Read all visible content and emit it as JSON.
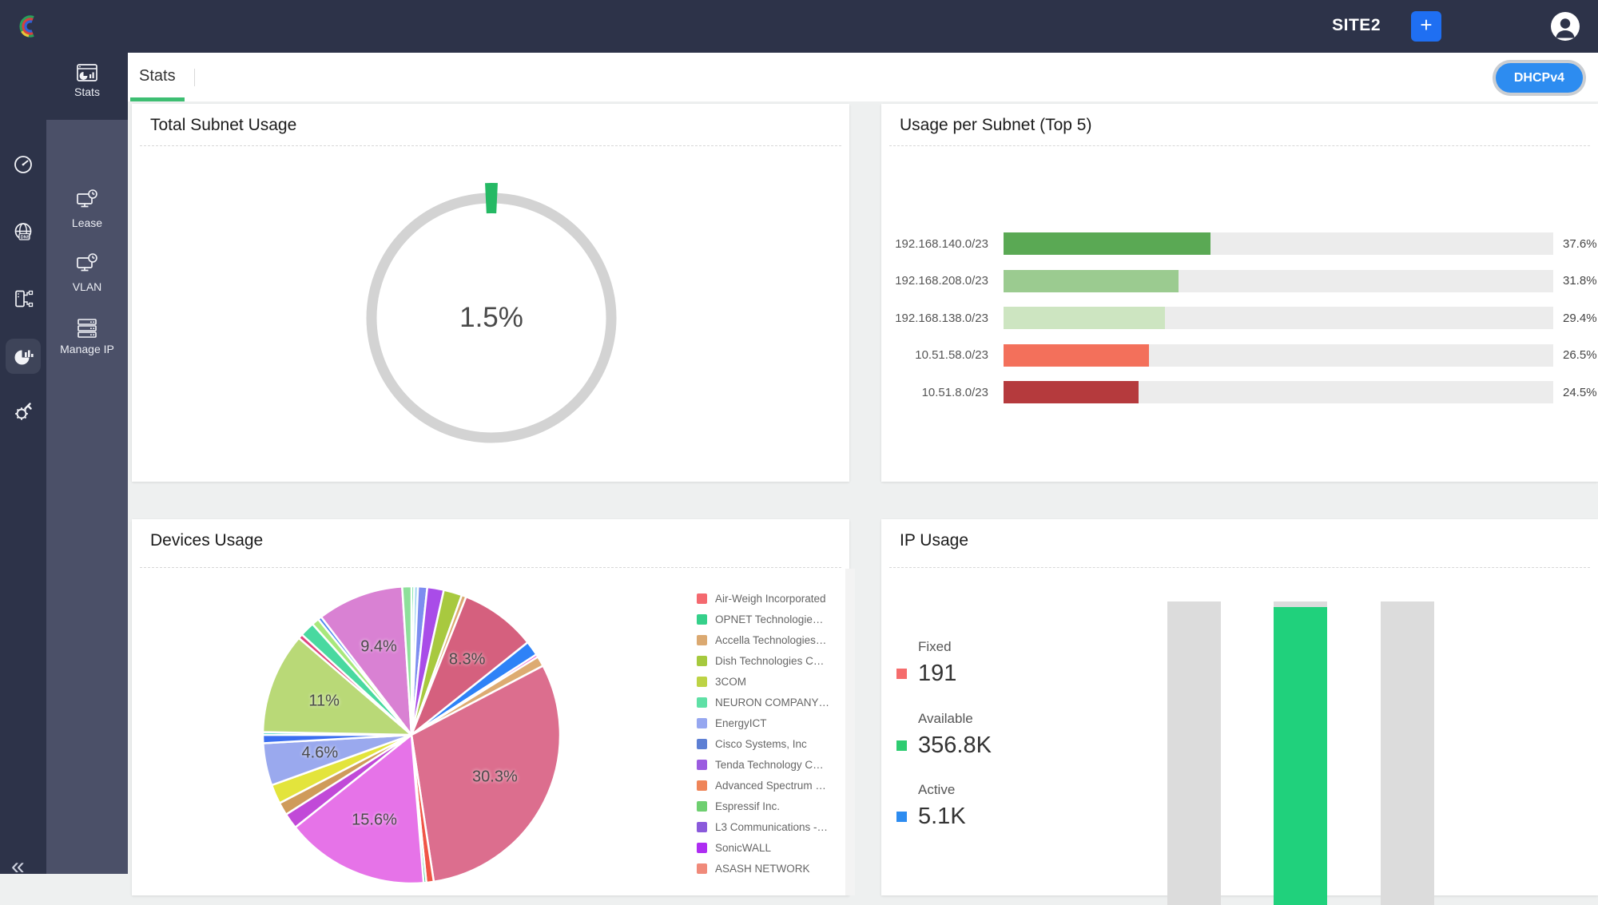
{
  "navbar": {
    "site": "SITE2",
    "add": "+"
  },
  "rail": {
    "collapse": "«"
  },
  "sidebar": {
    "active_index": 0,
    "items": [
      {
        "label": "Stats"
      },
      {
        "label": "Lease"
      },
      {
        "label": "VLAN"
      },
      {
        "label": "Manage IP"
      }
    ]
  },
  "toolbar": {
    "active_tab": "Stats",
    "badge": "DHCPv4"
  },
  "cards": {
    "total_subnet_usage": {
      "title": "Total Subnet Usage",
      "center_label": "1.5%"
    },
    "usage_per_subnet": {
      "title": "Usage per Subnet (Top 5)"
    },
    "devices_usage": {
      "title": "Devices Usage"
    },
    "ip_usage": {
      "title": "IP Usage"
    }
  },
  "chart_data": [
    {
      "type": "donut-gauge",
      "title": "Total Subnet Usage",
      "value": 1.5,
      "max": 100,
      "center_label": "1.5%",
      "ring_color": "#d3d3d3",
      "marker_color": "#25b964"
    },
    {
      "type": "bar",
      "orientation": "horizontal",
      "title": "Usage per Subnet (Top 5)",
      "categories": [
        "192.168.140.0/23",
        "192.168.208.0/23",
        "192.168.138.0/23",
        "10.51.58.0/23",
        "10.51.8.0/23"
      ],
      "values": [
        37.6,
        31.8,
        29.4,
        26.5,
        24.5
      ],
      "value_labels": [
        "37.6%",
        "31.8%",
        "29.4%",
        "26.5%",
        "24.5%"
      ],
      "bar_colors": [
        "#5aa954",
        "#9bcb90",
        "#cde5c1",
        "#f3705b",
        "#b53a3d"
      ],
      "track_color": "#ececec",
      "xlim": [
        0,
        100
      ],
      "grid": false
    },
    {
      "type": "pie",
      "title": "Devices Usage",
      "legend_position": "right",
      "slices": [
        {
          "value": 0.3,
          "color": "#4cd98a"
        },
        {
          "value": 0.4,
          "color": "#9fd4f2"
        },
        {
          "value": 1.0,
          "color": "#7d8df0"
        },
        {
          "value": 1.8,
          "color": "#a94ce8"
        },
        {
          "value": 2.0,
          "color": "#a8c93f"
        },
        {
          "value": 0.5,
          "color": "#dba971"
        },
        {
          "value": 8.3,
          "color": "#d5607e",
          "label": "8.3%"
        },
        {
          "value": 1.6,
          "color": "#2e82f7"
        },
        {
          "value": 0.3,
          "color": "#e84ccf"
        },
        {
          "value": 1.1,
          "color": "#ddab72"
        },
        {
          "value": 30.3,
          "color": "#dc6e8e",
          "label": "30.3%"
        },
        {
          "value": 0.8,
          "color": "#f05546"
        },
        {
          "value": 0.3,
          "color": "#3ecf8a"
        },
        {
          "value": 15.6,
          "color": "#e673e8",
          "label": "15.6%"
        },
        {
          "value": 1.7,
          "color": "#c149d8"
        },
        {
          "value": 1.4,
          "color": "#cf9b5a"
        },
        {
          "value": 2.1,
          "color": "#e3e43c"
        },
        {
          "value": 4.6,
          "color": "#9aa9ee",
          "label": "4.6%"
        },
        {
          "value": 0.9,
          "color": "#3b6ef0"
        },
        {
          "value": 0.3,
          "color": "#3fd2c0"
        },
        {
          "value": 11.0,
          "color": "#b9d977",
          "label": "11%"
        },
        {
          "value": 0.5,
          "color": "#e0457c"
        },
        {
          "value": 1.6,
          "color": "#49d9a0"
        },
        {
          "value": 0.8,
          "color": "#a8e87c"
        },
        {
          "value": 0.4,
          "color": "#4a86ef"
        },
        {
          "value": 9.4,
          "color": "#d981d3",
          "label": "9.4%"
        },
        {
          "value": 1.0,
          "color": "#8ee09b"
        }
      ],
      "legend": [
        {
          "label": "Air-Weigh Incorporated",
          "color": "#f4696f"
        },
        {
          "label": "OPNET Technologie…",
          "color": "#35d08a"
        },
        {
          "label": "Accella Technologies…",
          "color": "#dba971"
        },
        {
          "label": "Dish Technologies C…",
          "color": "#a6c93e"
        },
        {
          "label": "3COM",
          "color": "#bdd345"
        },
        {
          "label": "NEURON COMPANY…",
          "color": "#5fe0a6"
        },
        {
          "label": "EnergyICT",
          "color": "#96a7f0"
        },
        {
          "label": "Cisco Systems, Inc",
          "color": "#5d7fd4"
        },
        {
          "label": "Tenda Technology C…",
          "color": "#9b5ce0"
        },
        {
          "label": "Advanced Spectrum …",
          "color": "#ef8559"
        },
        {
          "label": "Espressif Inc.",
          "color": "#6ecf70"
        },
        {
          "label": "L3 Communications -…",
          "color": "#8a5adb"
        },
        {
          "label": "SonicWALL",
          "color": "#ae2df2"
        },
        {
          "label": "ASASH NETWORK",
          "color": "#f08a7a"
        }
      ]
    },
    {
      "type": "bar",
      "title": "IP Usage",
      "stacked": true,
      "legend": [
        {
          "label": "Fixed",
          "value": "191",
          "color": "#f56c6c"
        },
        {
          "label": "Available",
          "value": "356.8K",
          "color": "#2ecc71"
        },
        {
          "label": "Active",
          "value": "5.1K",
          "color": "#2d8cf0"
        }
      ],
      "columns": [
        {
          "segments": [
            {
              "color": "#dcdcdc",
              "frac": 1.0
            }
          ]
        },
        {
          "segments": [
            {
              "color": "#dcdcdc",
              "frac": 0.018
            },
            {
              "color": "#20d17c",
              "frac": 0.982
            }
          ]
        },
        {
          "segments": [
            {
              "color": "#dcdcdc",
              "frac": 1.0
            }
          ]
        }
      ]
    }
  ]
}
